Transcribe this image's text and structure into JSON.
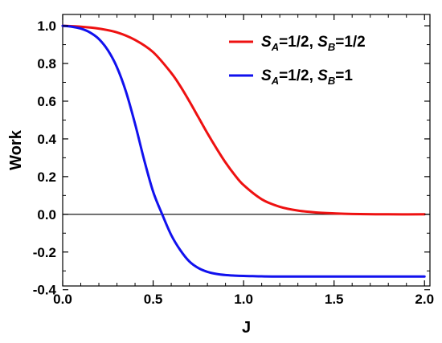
{
  "chart_data": {
    "type": "line",
    "title": "",
    "xlabel": "J",
    "ylabel": "Work",
    "xlim": [
      0,
      2.03
    ],
    "ylim": [
      -0.38,
      1.06
    ],
    "xticks": [
      0.0,
      0.5,
      1.0,
      1.5,
      2.0
    ],
    "xtick_labels": [
      "0.0",
      "0.5",
      "1.0",
      "1.5",
      "2.0"
    ],
    "yticks": [
      -0.4,
      -0.2,
      0.0,
      0.2,
      0.4,
      0.6,
      0.8,
      1.0
    ],
    "ytick_labels": [
      "-0.4",
      "-0.2",
      "0.0",
      "0.2",
      "0.4",
      "0.6",
      "0.8",
      "1.0"
    ],
    "grid": false,
    "legend_position": "top-right",
    "reference_line_y": 0.0,
    "series": [
      {
        "name": "S_A=1/2, S_B=1/2",
        "legend_parts": [
          {
            "t": "S",
            "style": "ital"
          },
          {
            "t": "A",
            "style": "sub"
          },
          {
            "t": "=1/2, ",
            "style": "norm"
          },
          {
            "t": "S",
            "style": "ital"
          },
          {
            "t": "B",
            "style": "sub"
          },
          {
            "t": "=1/2",
            "style": "norm"
          }
        ],
        "color": "#ee1111",
        "x": [
          0.0,
          0.1,
          0.2,
          0.3,
          0.4,
          0.5,
          0.6,
          0.65,
          0.7,
          0.75,
          0.8,
          0.85,
          0.9,
          0.95,
          1.0,
          1.1,
          1.2,
          1.3,
          1.4,
          1.5,
          1.6,
          1.8,
          2.0
        ],
        "y": [
          1.0,
          0.995,
          0.985,
          0.965,
          0.925,
          0.86,
          0.75,
          0.68,
          0.6,
          0.515,
          0.43,
          0.35,
          0.275,
          0.21,
          0.155,
          0.08,
          0.04,
          0.02,
          0.01,
          0.005,
          0.002,
          0.0,
          0.0
        ]
      },
      {
        "name": "S_A=1/2, S_B=1",
        "legend_parts": [
          {
            "t": "S",
            "style": "ital"
          },
          {
            "t": "A",
            "style": "sub"
          },
          {
            "t": "=1/2, ",
            "style": "norm"
          },
          {
            "t": "S",
            "style": "ital"
          },
          {
            "t": "B",
            "style": "sub"
          },
          {
            "t": "=1",
            "style": "norm"
          }
        ],
        "color": "#1111ee",
        "x": [
          0.0,
          0.05,
          0.1,
          0.15,
          0.2,
          0.25,
          0.3,
          0.35,
          0.4,
          0.45,
          0.5,
          0.55,
          0.6,
          0.65,
          0.7,
          0.75,
          0.8,
          0.85,
          0.9,
          0.95,
          1.0,
          1.05,
          1.1,
          1.2,
          1.4,
          1.6,
          1.8,
          2.0
        ],
        "y": [
          1.0,
          0.995,
          0.985,
          0.965,
          0.93,
          0.87,
          0.78,
          0.65,
          0.48,
          0.29,
          0.12,
          0.0,
          -0.11,
          -0.19,
          -0.25,
          -0.285,
          -0.305,
          -0.316,
          -0.322,
          -0.325,
          -0.327,
          -0.328,
          -0.329,
          -0.33,
          -0.33,
          -0.33,
          -0.33,
          -0.33
        ]
      }
    ]
  }
}
